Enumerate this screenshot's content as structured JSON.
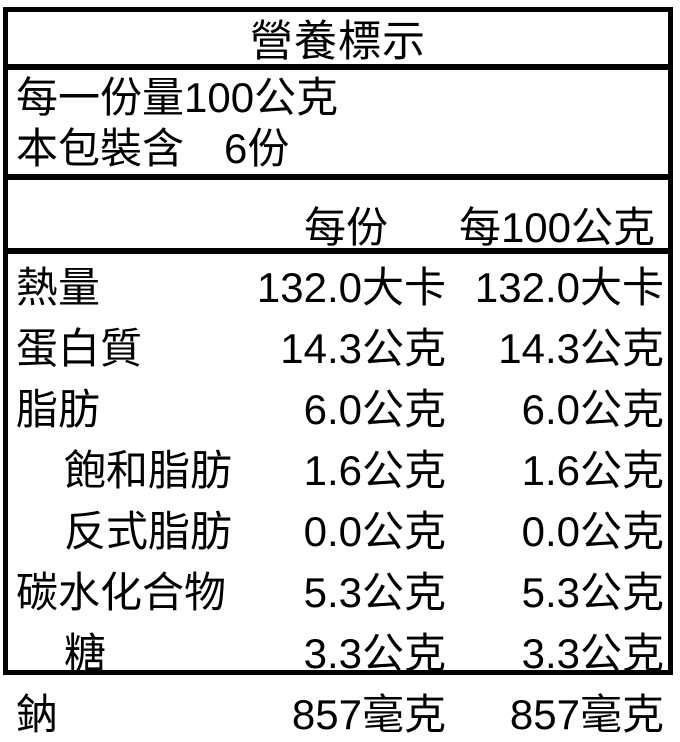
{
  "nutrition_label": {
    "title": "營養標示",
    "serving_size_line": "每一份量100公克",
    "servings_label": "本包裝含",
    "servings_value": "6份",
    "columns": {
      "per_serving": "每份",
      "per_100g": "每100公克"
    },
    "rows": [
      {
        "name": "熱量",
        "per_serving": "132.0大卡",
        "per_100g": "132.0大卡"
      },
      {
        "name": "蛋白質",
        "per_serving": "14.3公克",
        "per_100g": "14.3公克"
      },
      {
        "name": "脂肪",
        "per_serving": "6.0公克",
        "per_100g": "6.0公克"
      },
      {
        "name": "飽和脂肪",
        "per_serving": "1.6公克",
        "per_100g": "1.6公克"
      },
      {
        "name": "反式脂肪",
        "per_serving": "0.0公克",
        "per_100g": "0.0公克"
      },
      {
        "name": "碳水化合物",
        "per_serving": "5.3公克",
        "per_100g": "5.3公克"
      },
      {
        "name": "糖",
        "per_serving": "3.3公克",
        "per_100g": "3.3公克"
      },
      {
        "name": "鈉",
        "per_serving": "857毫克",
        "per_100g": "857毫克"
      }
    ],
    "colors": {
      "text": "#000000",
      "border": "#000000",
      "background": "#ffffff"
    }
  }
}
